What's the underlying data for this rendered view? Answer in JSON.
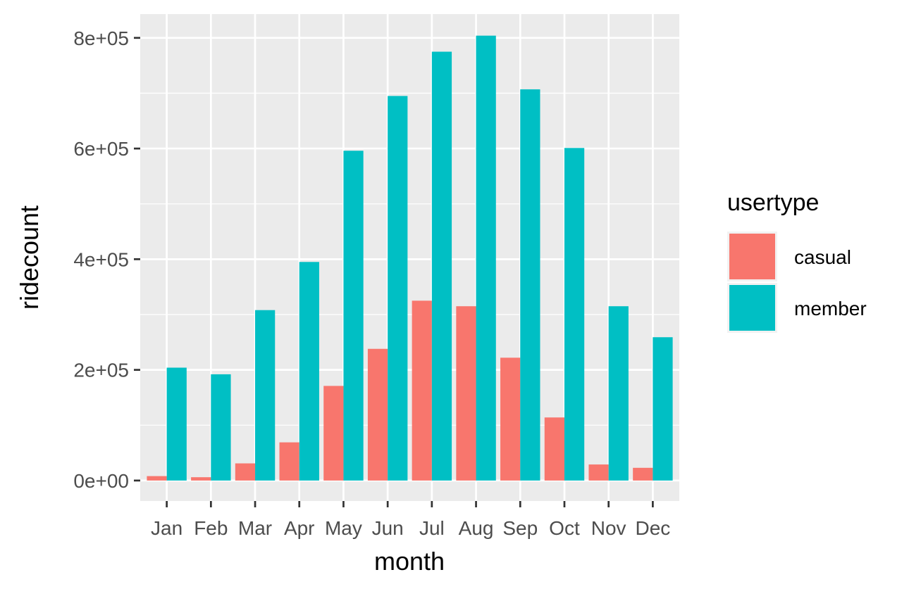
{
  "chart_data": {
    "type": "bar",
    "title": "",
    "xlabel": "month",
    "ylabel": "ridecount",
    "categories": [
      "Jan",
      "Feb",
      "Mar",
      "Apr",
      "May",
      "Jun",
      "Jul",
      "Aug",
      "Sep",
      "Oct",
      "Nov",
      "Dec"
    ],
    "series": [
      {
        "name": "casual",
        "color": "#F8766D",
        "values": [
          8000,
          6000,
          31000,
          69000,
          171000,
          238000,
          325000,
          315000,
          222000,
          114000,
          29000,
          23000
        ]
      },
      {
        "name": "member",
        "color": "#00BFC4",
        "values": [
          204000,
          192000,
          308000,
          395000,
          596000,
          695000,
          775000,
          804000,
          707000,
          601000,
          315000,
          259000
        ]
      }
    ],
    "ylim": [
      -37000,
      843000
    ],
    "yticks": [
      0,
      200000,
      400000,
      600000,
      800000
    ],
    "ytick_labels": [
      "0e+00",
      "2e+05",
      "4e+05",
      "6e+05",
      "8e+05"
    ],
    "grid": true,
    "panel_color": "#EBEBEB",
    "legend": {
      "title": "usertype",
      "position": "right"
    }
  }
}
